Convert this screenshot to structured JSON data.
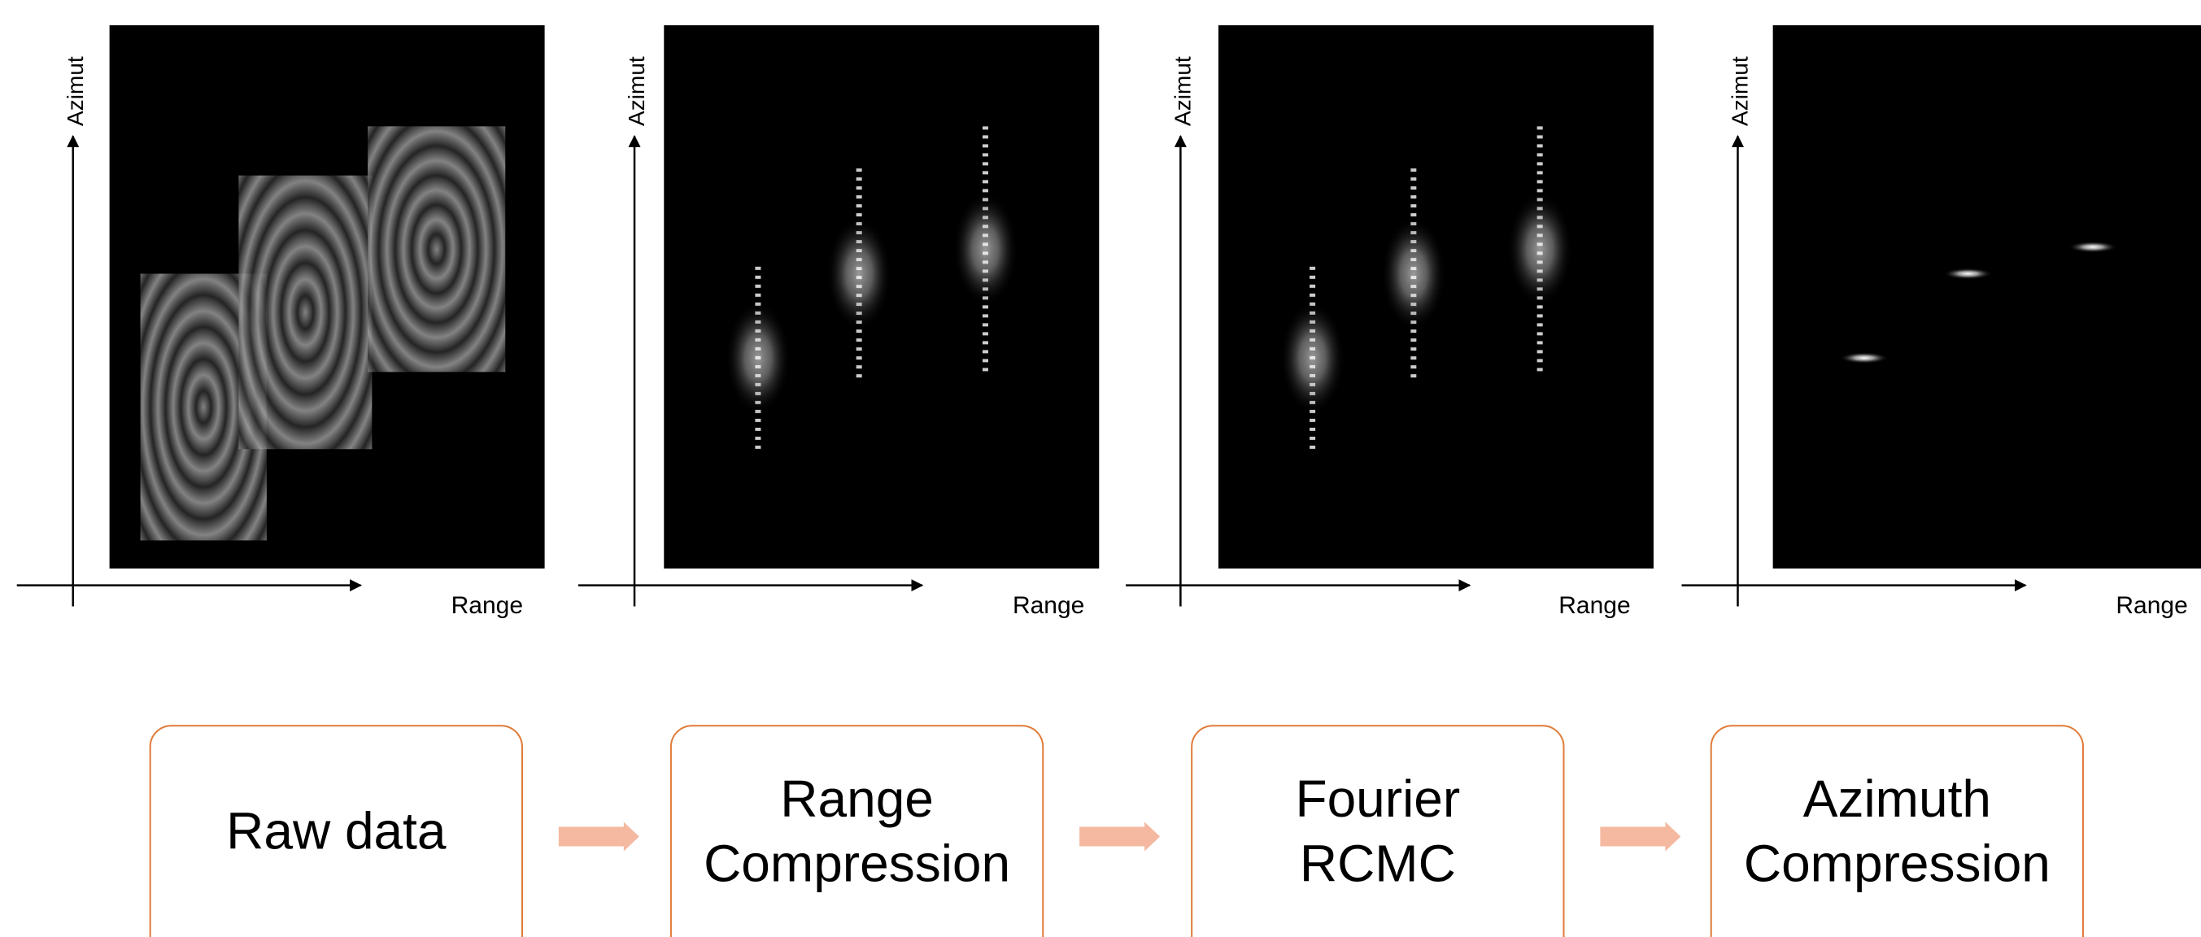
{
  "panels": [
    {
      "y_label": "Azimut",
      "x_label": "Range"
    },
    {
      "y_label": "Azimut",
      "x_label": "Range"
    },
    {
      "y_label": "Azimut",
      "x_label": "Range"
    },
    {
      "y_label": "Azimut",
      "x_label": "Range"
    }
  ],
  "steps": [
    {
      "lines": [
        "Raw data"
      ]
    },
    {
      "lines": [
        "Range",
        "Compression"
      ]
    },
    {
      "lines": [
        "Fourier",
        "RCMC"
      ]
    },
    {
      "lines": [
        "Azimuth",
        "Compression"
      ]
    }
  ]
}
